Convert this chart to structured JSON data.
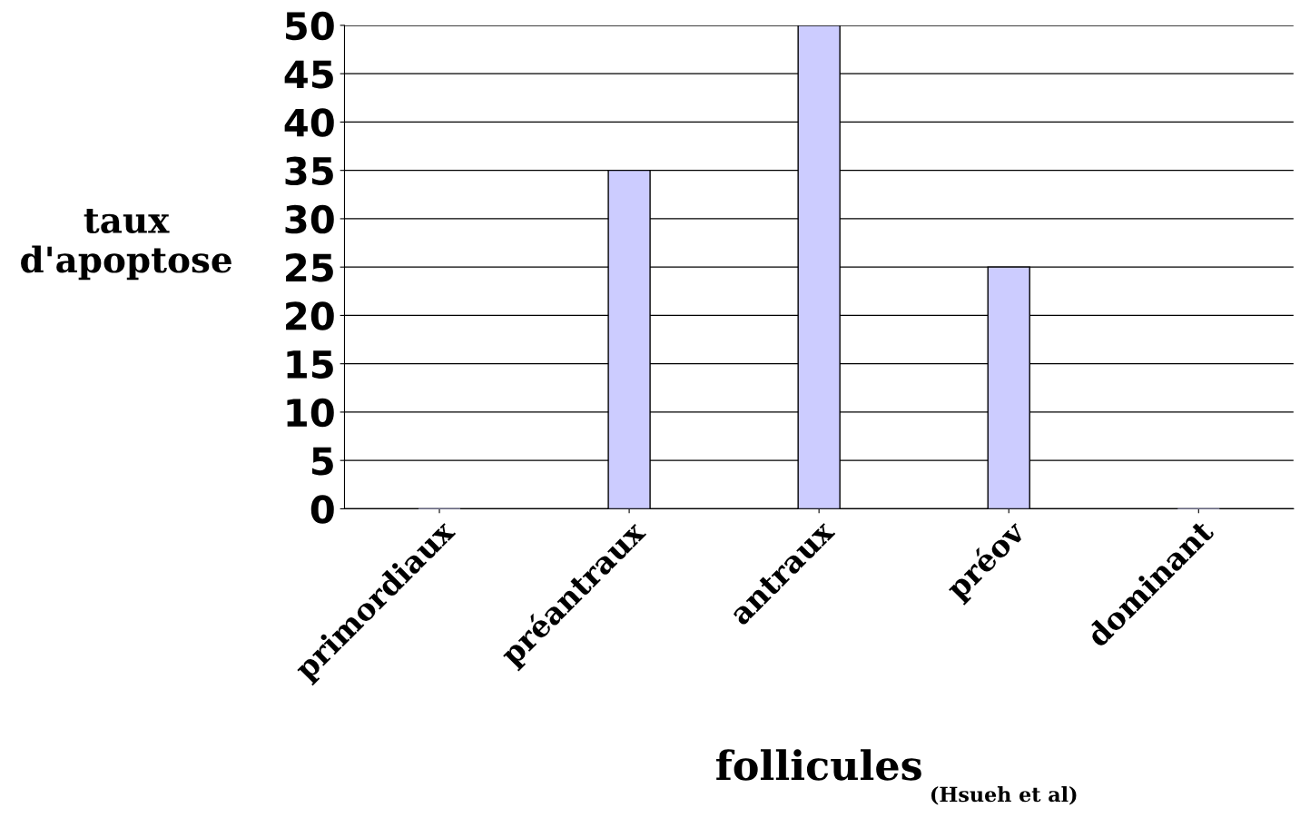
{
  "chart_data": {
    "type": "bar",
    "categories": [
      "primordiaux",
      "préantraux",
      "antraux",
      "préov",
      "dominant"
    ],
    "values": [
      0,
      35,
      50,
      25,
      0
    ],
    "color": "#ccccff",
    "ylabel": "taux\nd'apoptose",
    "xlabel": "follicules",
    "annotations": [
      "(Hsueh et al)"
    ],
    "ylim": [
      0,
      50
    ],
    "yticks": [
      0,
      5,
      10,
      15,
      20,
      25,
      30,
      35,
      40,
      45,
      50
    ],
    "grid": "y"
  }
}
